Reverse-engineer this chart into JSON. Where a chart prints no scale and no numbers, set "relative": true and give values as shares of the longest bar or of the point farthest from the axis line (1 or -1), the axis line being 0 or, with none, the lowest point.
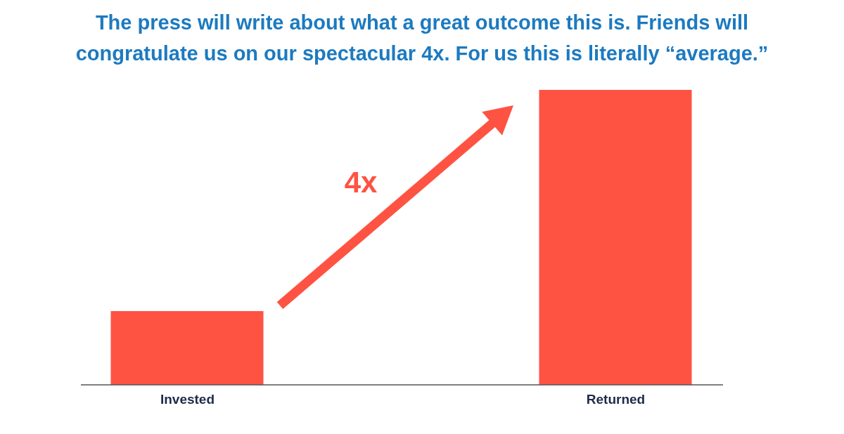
{
  "chart_data": {
    "type": "bar",
    "title": "The press will write about what a great outcome this is. Friends will congratulate us on our spectacular 4x. For us this is literally “average.”",
    "categories": [
      "Invested",
      "Returned"
    ],
    "values": [
      0.25,
      1
    ],
    "color": "#fe5343",
    "relative": true,
    "annotations": [
      "4x"
    ]
  }
}
